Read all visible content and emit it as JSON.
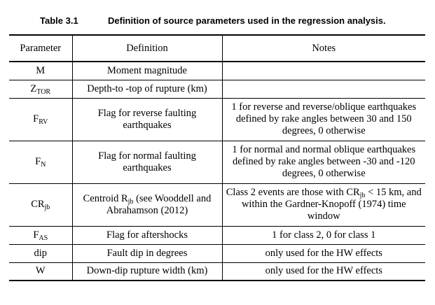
{
  "caption": {
    "number": "Table 3.1",
    "title": "Definition of source parameters used in the regression analysis."
  },
  "table": {
    "headers": {
      "parameter": "Parameter",
      "definition": "Definition",
      "notes": "Notes"
    },
    "rows": [
      {
        "param_main": "M",
        "param_sub": "",
        "definition": "Moment magnitude",
        "notes": ""
      },
      {
        "param_main": "Z",
        "param_sub": "TOR",
        "definition": "Depth-to -top of rupture (km)",
        "notes": ""
      },
      {
        "param_main": "F",
        "param_sub": "RV",
        "definition": "Flag for reverse faulting earthquakes",
        "notes": "1 for reverse and reverse/oblique earthquakes defined by rake angles between 30 and 150 degrees, 0 otherwise"
      },
      {
        "param_main": "F",
        "param_sub": "N",
        "definition": "Flag for normal faulting earthquakes",
        "notes": "1 for normal and normal oblique earthquakes defined by rake angles between -30 and -120 degrees, 0 otherwise"
      },
      {
        "param_main": "CR",
        "param_sub": "jb",
        "definition_pre": "Centroid R",
        "definition_sub": "jb",
        "definition_post": " (see Wooddell and Abrahamson (2012)",
        "notes_pre": "Class 2 events are those with CR",
        "notes_sub": "jb",
        "notes_post": " < 15 km, and within the Gardner-Knopoff (1974) time window"
      },
      {
        "param_main": "F",
        "param_sub": "AS",
        "definition": "Flag for aftershocks",
        "notes": "1 for class 2, 0 for class 1"
      },
      {
        "param_main": "dip",
        "param_sub": "",
        "definition": "Fault dip in degrees",
        "notes": "only used for the HW effects"
      },
      {
        "param_main": "W",
        "param_sub": "",
        "definition": "Down-dip rupture width (km)",
        "notes": "only used for the HW effects"
      }
    ]
  }
}
